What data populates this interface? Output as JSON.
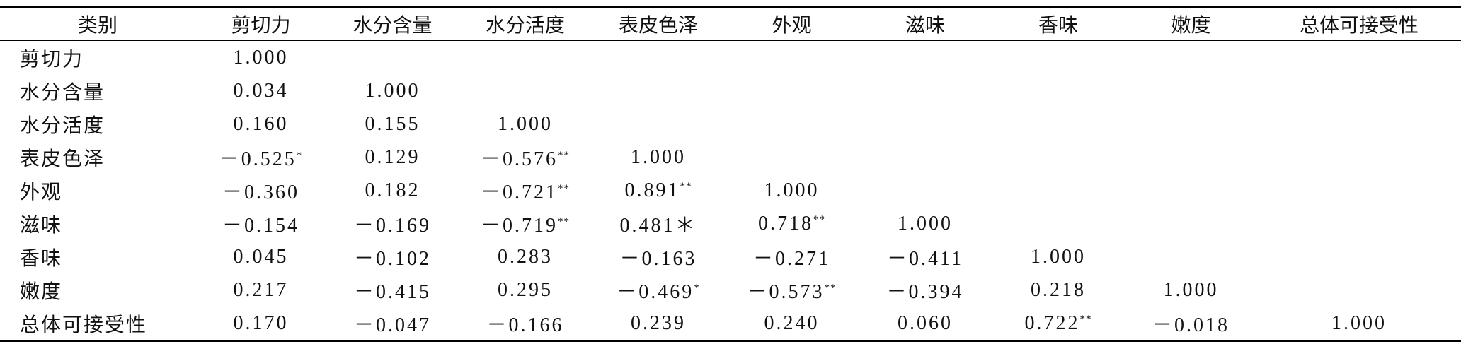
{
  "table": {
    "header": [
      "类别",
      "剪切力",
      "水分含量",
      "水分活度",
      "表皮色泽",
      "外观",
      "滋味",
      "香味",
      "嫩度",
      "总体可接受性"
    ],
    "rows": [
      [
        "剪切力",
        "1.000"
      ],
      [
        "水分含量",
        "0.034",
        "1.000"
      ],
      [
        "水分活度",
        "0.160",
        "0.155",
        "1.000"
      ],
      [
        "表皮色泽",
        {
          "text": "－0.525",
          "sig": "*"
        },
        "0.129",
        {
          "text": "－0.576",
          "sig": "**"
        },
        "1.000"
      ],
      [
        "外观",
        "－0.360",
        "0.182",
        {
          "text": "－0.721",
          "sig": "**"
        },
        {
          "text": "0.891",
          "sig": "**"
        },
        "1.000"
      ],
      [
        "滋味",
        "－0.154",
        "－0.169",
        {
          "text": "－0.719",
          "sig": "**"
        },
        "0.481＊",
        {
          "text": "0.718",
          "sig": "**"
        },
        "1.000"
      ],
      [
        "香味",
        "0.045",
        "－0.102",
        "0.283",
        "－0.163",
        "－0.271",
        "－0.411",
        "1.000"
      ],
      [
        "嫩度",
        "0.217",
        "－0.415",
        "0.295",
        {
          "text": "－0.469",
          "sig": "*"
        },
        {
          "text": "－0.573",
          "sig": "**"
        },
        "－0.394",
        "0.218",
        "1.000"
      ],
      [
        "总体可接受性",
        "0.170",
        "－0.047",
        "－0.166",
        "0.239",
        "0.240",
        "0.060",
        {
          "text": "0.722",
          "sig": "**"
        },
        "－0.018",
        "1.000"
      ]
    ]
  }
}
